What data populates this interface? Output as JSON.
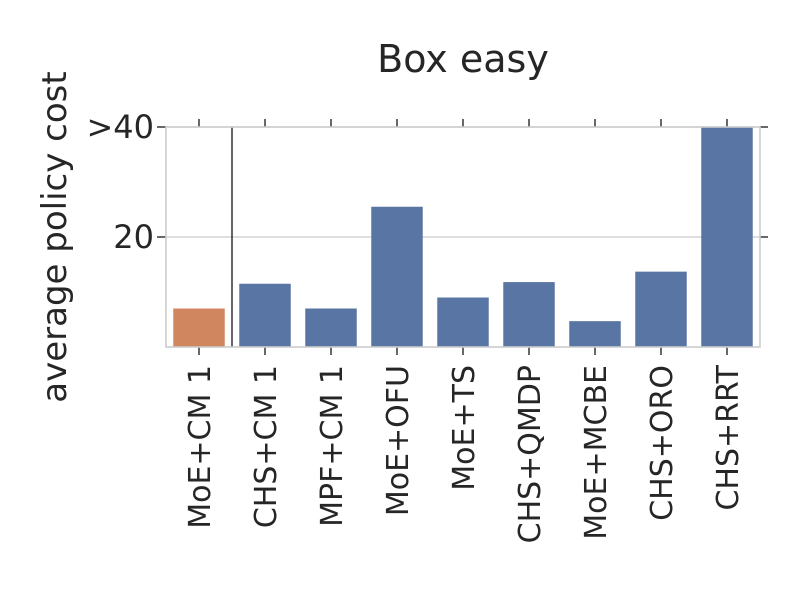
{
  "chart_data": {
    "type": "bar",
    "title": "Box easy",
    "xlabel": "",
    "ylabel": "average policy cost",
    "categories": [
      "MoE+CM 1",
      "CHS+CM 1",
      "MPF+CM 1",
      "MoE+OFU",
      "MoE+TS",
      "CHS+QMDP",
      "MoE+MCBE",
      "CHS+ORO",
      "CHS+RRT"
    ],
    "values": [
      7,
      11.5,
      7,
      25.5,
      9,
      11.8,
      4.7,
      13.7,
      40
    ],
    "colors": [
      "#d0865e",
      "#5975a4",
      "#5975a4",
      "#5975a4",
      "#5975a4",
      "#5975a4",
      "#5975a4",
      "#5975a4",
      "#5975a4"
    ],
    "ylim": [
      0,
      40
    ],
    "yticks": [
      {
        "value": 20,
        "label": "20"
      },
      {
        "value": 40,
        "label": ">40"
      }
    ],
    "grid": true,
    "divider_after_index": 0
  }
}
